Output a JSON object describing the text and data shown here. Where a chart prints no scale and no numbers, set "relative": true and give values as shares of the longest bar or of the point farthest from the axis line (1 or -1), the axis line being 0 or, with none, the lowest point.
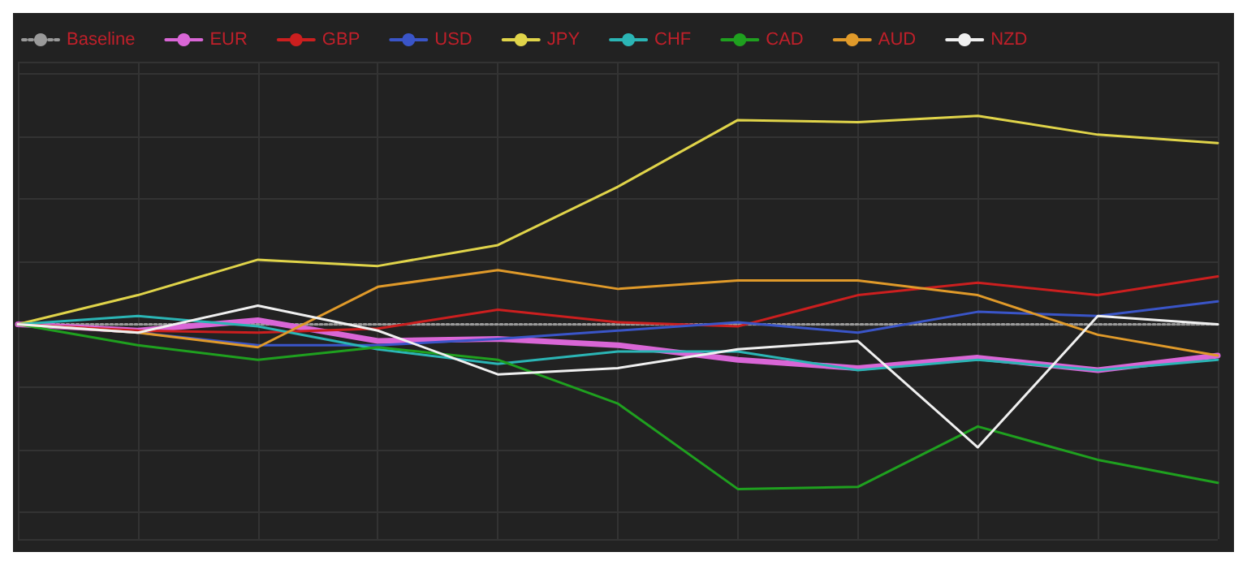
{
  "chart_data": {
    "type": "line",
    "relative": true,
    "grid": true,
    "legend": "top left",
    "marker": "none",
    "categories": [
      null,
      null,
      null,
      null,
      null,
      null,
      null,
      null,
      null,
      null,
      null
    ],
    "series": [
      {
        "name": "Baseline",
        "color": "#9a9a9a",
        "line_style": "dotted",
        "values": [
          0,
          0,
          0,
          0,
          0,
          0,
          0,
          0,
          0,
          0,
          0
        ]
      },
      {
        "name": "EUR",
        "color": "#d966d6",
        "values": [
          0,
          -0.03,
          0.02,
          -0.08,
          -0.07,
          -0.1,
          -0.17,
          -0.21,
          -0.16,
          -0.22,
          -0.15
        ]
      },
      {
        "name": "GBP",
        "color": "#cc1f1f",
        "values": [
          0,
          -0.03,
          -0.04,
          -0.02,
          0.07,
          0.01,
          -0.01,
          0.14,
          0.2,
          0.14,
          0.23
        ]
      },
      {
        "name": "USD",
        "color": "#3a55c8",
        "values": [
          0,
          -0.04,
          -0.1,
          -0.1,
          -0.07,
          -0.03,
          0.01,
          -0.04,
          0.06,
          0.04,
          0.11
        ]
      },
      {
        "name": "JPY",
        "color": "#e0d44a",
        "values": [
          0,
          0.14,
          0.31,
          0.28,
          0.38,
          0.66,
          0.98,
          0.97,
          1,
          0.91,
          0.87
        ]
      },
      {
        "name": "CHF",
        "color": "#2bb5b5",
        "values": [
          0,
          0.04,
          -0.01,
          -0.12,
          -0.19,
          -0.13,
          -0.13,
          -0.22,
          -0.17,
          -0.22,
          -0.17
        ]
      },
      {
        "name": "CAD",
        "color": "#1fa01f",
        "values": [
          0,
          -0.1,
          -0.17,
          -0.11,
          -0.17,
          -0.38,
          -0.79,
          -0.78,
          -0.49,
          -0.65,
          -0.76
        ]
      },
      {
        "name": "AUD",
        "color": "#e09a2a",
        "values": [
          0,
          -0.04,
          -0.11,
          0.18,
          0.26,
          0.17,
          0.21,
          0.21,
          0.14,
          -0.05,
          -0.15
        ]
      },
      {
        "name": "NZD",
        "color": "#f0f0f0",
        "values": [
          0,
          -0.04,
          0.09,
          -0.03,
          -0.24,
          -0.21,
          -0.12,
          -0.08,
          -0.59,
          0.04,
          0
        ]
      }
    ]
  }
}
